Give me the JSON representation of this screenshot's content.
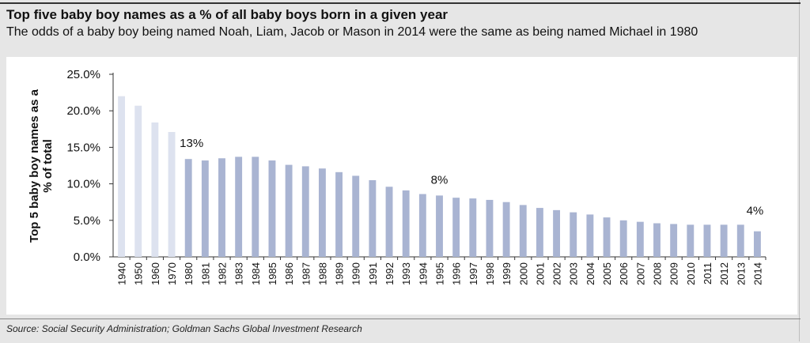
{
  "header": {
    "title": "Top five baby boy names as a % of all baby boys born in a given year",
    "subtitle": "The odds of a baby boy being named Noah, Liam, Jacob or Mason in 2014 were the same as being named Michael in 1980"
  },
  "footer": {
    "source": "Source: Social Security Administration; Goldman Sachs Global Investment Research"
  },
  "chart_data": {
    "type": "bar",
    "title": "",
    "xlabel": "",
    "ylabel": "Top 5 baby boy names as a % of total",
    "ylim": [
      0,
      25
    ],
    "yticks": [
      "0.0%",
      "5.0%",
      "10.0%",
      "15.0%",
      "20.0%",
      "25.0%"
    ],
    "grid": false,
    "categories": [
      "1940",
      "1950",
      "1960",
      "1970",
      "1980",
      "1981",
      "1982",
      "1983",
      "1984",
      "1985",
      "1986",
      "1987",
      "1988",
      "1989",
      "1990",
      "1991",
      "1992",
      "1993",
      "1994",
      "1995",
      "1996",
      "1997",
      "1998",
      "1999",
      "2000",
      "2001",
      "2002",
      "2003",
      "2004",
      "2005",
      "2006",
      "2007",
      "2008",
      "2009",
      "2010",
      "2011",
      "2012",
      "2013",
      "2014"
    ],
    "values": [
      22.0,
      20.7,
      18.4,
      17.1,
      13.4,
      13.2,
      13.5,
      13.7,
      13.7,
      13.2,
      12.6,
      12.4,
      12.1,
      11.6,
      11.1,
      10.5,
      9.6,
      9.1,
      8.6,
      8.4,
      8.1,
      8.0,
      7.8,
      7.5,
      7.1,
      6.7,
      6.4,
      6.1,
      5.8,
      5.4,
      5.0,
      4.8,
      4.6,
      4.5,
      4.4,
      4.4,
      4.4,
      4.4,
      3.5
    ],
    "colors": {
      "early": "#dde2ef",
      "main": "#a9b4d2",
      "axis": "#333333"
    },
    "annotations": [
      {
        "category": "1980",
        "text": "13%"
      },
      {
        "category": "1995",
        "text": "8%"
      },
      {
        "category": "2014",
        "text": "4%"
      }
    ]
  }
}
